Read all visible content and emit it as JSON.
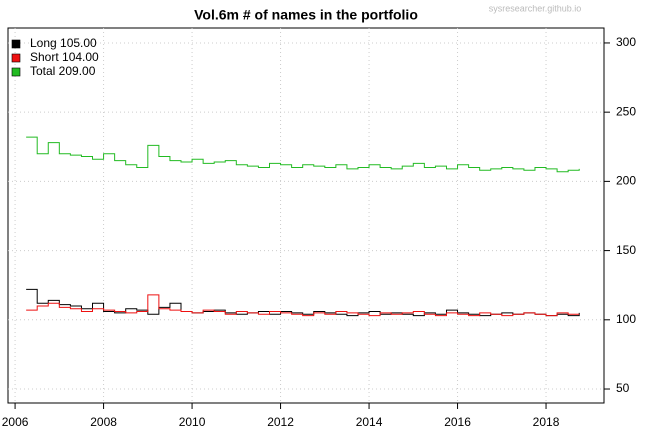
{
  "chart_data": {
    "type": "line",
    "step": true,
    "title": "Vol.6m # of names in the portfolio",
    "watermark": "sysresearcher.github.io",
    "x": [
      2006.25,
      2006.5,
      2006.75,
      2007,
      2007.25,
      2007.5,
      2007.75,
      2008,
      2008.25,
      2008.5,
      2008.75,
      2009,
      2009.25,
      2009.5,
      2009.75,
      2010,
      2010.25,
      2010.5,
      2010.75,
      2011,
      2011.25,
      2011.5,
      2011.75,
      2012,
      2012.25,
      2012.5,
      2012.75,
      2013,
      2013.25,
      2013.5,
      2013.75,
      2014,
      2014.25,
      2014.5,
      2014.75,
      2015,
      2015.25,
      2015.5,
      2015.75,
      2016,
      2016.25,
      2016.5,
      2016.75,
      2017,
      2017.25,
      2017.5,
      2017.75,
      2018,
      2018.25,
      2018.5,
      2018.75
    ],
    "series": [
      {
        "name": "Long 105.00",
        "color": "#000000",
        "values": [
          122,
          112,
          114,
          111,
          110,
          108,
          112,
          106,
          105,
          108,
          107,
          104,
          109,
          112,
          106,
          105,
          106,
          107,
          105,
          104,
          105,
          106,
          104,
          106,
          105,
          104,
          106,
          105,
          104,
          103,
          105,
          106,
          104,
          105,
          104,
          103,
          105,
          104,
          107,
          105,
          104,
          103,
          104,
          105,
          104,
          105,
          104,
          103,
          104,
          103,
          105
        ]
      },
      {
        "name": "Short 104.00",
        "color": "#ee1111",
        "values": [
          107,
          110,
          112,
          109,
          108,
          106,
          108,
          107,
          106,
          105,
          106,
          118,
          108,
          107,
          106,
          105,
          107,
          106,
          104,
          106,
          105,
          104,
          106,
          105,
          104,
          103,
          105,
          104,
          106,
          105,
          104,
          103,
          105,
          104,
          105,
          106,
          104,
          103,
          105,
          104,
          103,
          105,
          104,
          103,
          104,
          105,
          104,
          103,
          105,
          104,
          104
        ]
      },
      {
        "name": "Total 209.00",
        "color": "#22bb22",
        "values": [
          232,
          220,
          228,
          220,
          219,
          218,
          216,
          220,
          215,
          212,
          210,
          226,
          218,
          215,
          214,
          216,
          213,
          214,
          215,
          212,
          211,
          210,
          213,
          212,
          210,
          212,
          211,
          210,
          212,
          209,
          210,
          212,
          210,
          209,
          211,
          213,
          210,
          211,
          209,
          212,
          210,
          208,
          209,
          210,
          209,
          208,
          210,
          209,
          207,
          208,
          209
        ]
      }
    ],
    "xlim": [
      2005.84,
      2019.31
    ],
    "xticks": [
      2006,
      2008,
      2010,
      2012,
      2014,
      2016,
      2018
    ],
    "ylim": [
      39.9,
      310.8
    ],
    "yticks": [
      50,
      100,
      150,
      200,
      250,
      300
    ],
    "grid": true,
    "legend": "top-left"
  }
}
